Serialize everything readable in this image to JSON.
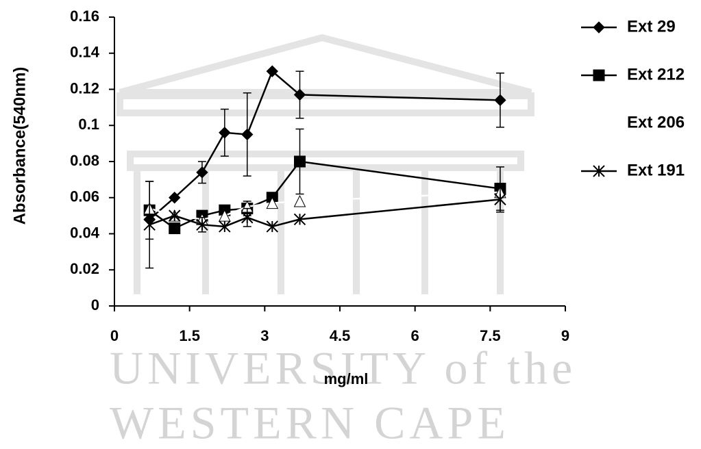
{
  "chart_data": {
    "type": "line",
    "x_label": "mg/ml",
    "y_label": "Absorbance(540nm)",
    "x": [
      0.7,
      1.2,
      1.75,
      2.2,
      2.65,
      3.15,
      3.7,
      7.7
    ],
    "series": [
      {
        "name": "Ext 29",
        "color": "#000000",
        "marker": "diamond",
        "values": [
          0.048,
          0.06,
          0.074,
          0.096,
          0.095,
          0.13,
          0.117,
          0.114
        ],
        "errors": [
          null,
          null,
          0.006,
          0.013,
          0.023,
          null,
          0.013,
          0.015
        ]
      },
      {
        "name": "Ext 212",
        "color": "#000000",
        "marker": "square",
        "values": [
          0.053,
          0.043,
          0.05,
          0.053,
          0.054,
          0.06,
          0.08,
          0.065
        ],
        "errors": [
          0.016,
          null,
          null,
          null,
          0.004,
          null,
          0.018,
          0.012
        ]
      },
      {
        "name": "Ext 206",
        "color": "#ffffff",
        "marker": "triangle",
        "values": [
          0.054,
          0.05,
          0.048,
          0.05,
          0.055,
          0.057,
          0.058,
          0.063
        ],
        "errors": [
          null,
          null,
          null,
          null,
          null,
          null,
          null,
          null
        ]
      },
      {
        "name": "Ext 191",
        "color": "#000000",
        "marker": "cross",
        "values": [
          0.045,
          0.05,
          0.045,
          0.044,
          0.049,
          0.044,
          0.048,
          0.059
        ],
        "errors": [
          0.024,
          null,
          0.004,
          null,
          0.005,
          null,
          null,
          0.007
        ]
      }
    ],
    "xlim": [
      0,
      9
    ],
    "xticks": [
      0,
      1.5,
      3,
      4.5,
      6,
      7.5,
      9
    ],
    "ylim": [
      0,
      0.16
    ],
    "yticks": [
      0,
      0.02,
      0.04,
      0.06,
      0.08,
      0.1,
      0.12,
      0.14,
      0.16
    ],
    "watermark": [
      "UNIVERSITY of the",
      "WESTERN CAPE"
    ]
  }
}
